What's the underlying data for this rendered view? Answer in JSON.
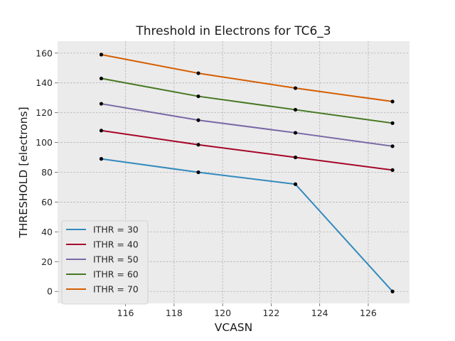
{
  "chart_data": {
    "type": "line",
    "title": "Threshold in Electrons for TC6_3",
    "xlabel": "VCASN",
    "ylabel": "THRESHOLD [electrons]",
    "x": [
      115,
      119,
      123,
      127
    ],
    "xlim": [
      113.2,
      127.7
    ],
    "ylim": [
      -8,
      168
    ],
    "xticks": [
      116,
      118,
      120,
      122,
      124,
      126
    ],
    "yticks": [
      0,
      20,
      40,
      60,
      80,
      100,
      120,
      140,
      160
    ],
    "grid": true,
    "legend_position": "lower-left",
    "background": "#ebebeb",
    "marker_color": "#000000",
    "series": [
      {
        "name": "ITHR = 30",
        "color": "#348abd",
        "values": [
          89,
          80,
          72,
          0
        ]
      },
      {
        "name": "ITHR = 40",
        "color": "#a60628",
        "values": [
          108,
          98.5,
          90,
          81.5
        ]
      },
      {
        "name": "ITHR = 50",
        "color": "#7a68a6",
        "values": [
          126,
          115,
          106.5,
          97.5
        ]
      },
      {
        "name": "ITHR = 60",
        "color": "#467821",
        "values": [
          143,
          131,
          122,
          113
        ]
      },
      {
        "name": "ITHR = 70",
        "color": "#d55e00",
        "values": [
          159,
          146.5,
          136.5,
          127.5
        ]
      }
    ]
  }
}
